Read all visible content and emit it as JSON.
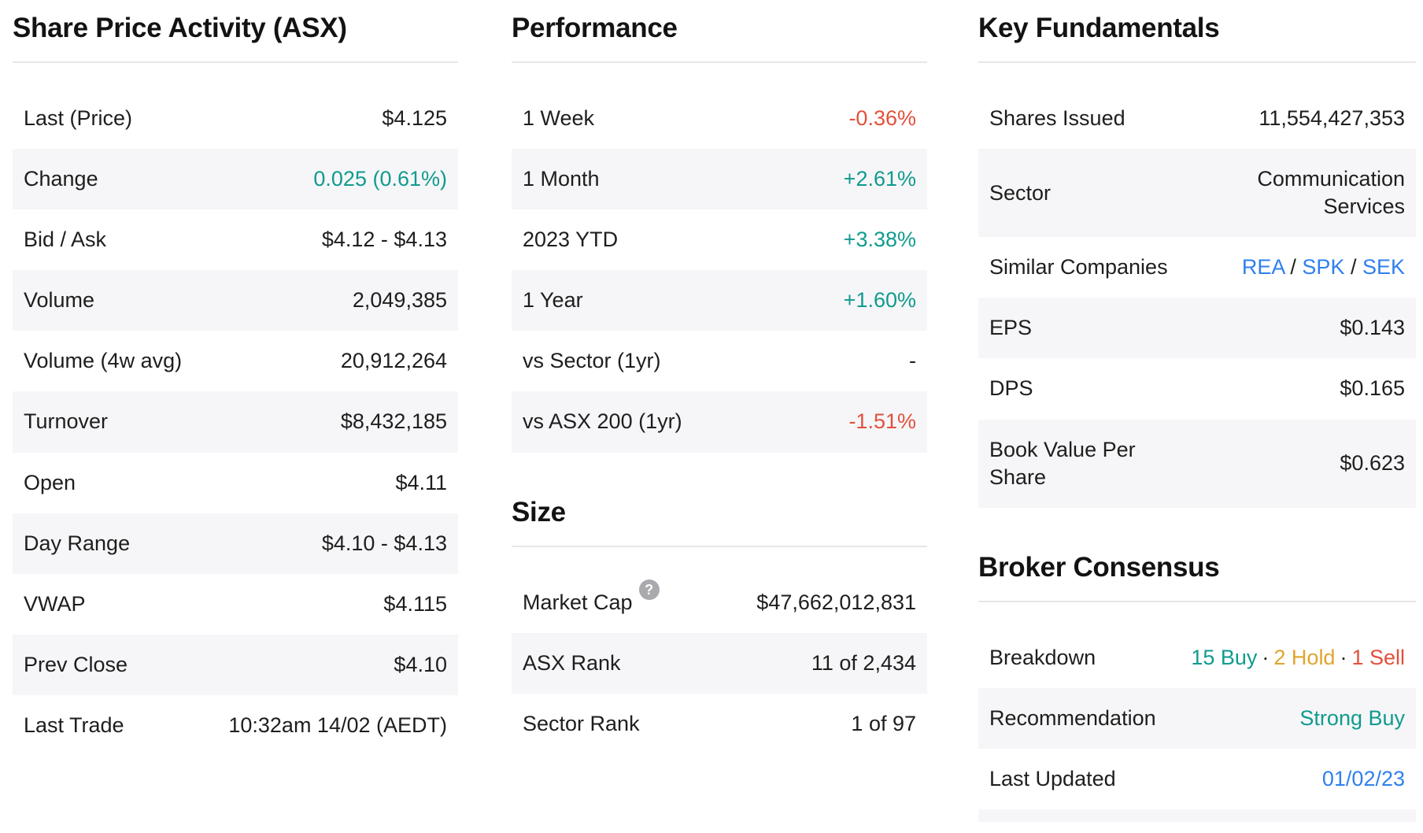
{
  "colors": {
    "positive": "#0F9B8E",
    "negative": "#E2503C",
    "hold": "#E0A52E",
    "link": "#2F80ED",
    "stripe": "#F6F6F8"
  },
  "share_price_activity": {
    "title": "Share Price Activity (ASX)",
    "rows": [
      {
        "label": "Last (Price)",
        "value": "$4.125"
      },
      {
        "label": "Change",
        "value": "0.025 (0.61%)"
      },
      {
        "label": "Bid / Ask",
        "value": "$4.12 - $4.13"
      },
      {
        "label": "Volume",
        "value": "2,049,385"
      },
      {
        "label": "Volume (4w avg)",
        "value": "20,912,264"
      },
      {
        "label": "Turnover",
        "value": "$8,432,185"
      },
      {
        "label": "Open",
        "value": "$4.11"
      },
      {
        "label": "Day Range",
        "value": "$4.10 - $4.13"
      },
      {
        "label": "VWAP",
        "value": "$4.115"
      },
      {
        "label": "Prev Close",
        "value": "$4.10"
      },
      {
        "label": "Last Trade",
        "value": "10:32am 14/02 (AEDT)"
      }
    ]
  },
  "performance": {
    "title": "Performance",
    "rows": [
      {
        "label": "1 Week",
        "value": "-0.36%"
      },
      {
        "label": "1 Month",
        "value": "+2.61%"
      },
      {
        "label": "2023 YTD",
        "value": "+3.38%"
      },
      {
        "label": "1 Year",
        "value": "+1.60%"
      },
      {
        "label": "vs Sector (1yr)",
        "value": "-"
      },
      {
        "label": "vs ASX 200 (1yr)",
        "value": "-1.51%"
      }
    ]
  },
  "size": {
    "title": "Size",
    "help_icon": "?",
    "rows": [
      {
        "label": "Market Cap",
        "value": "$47,662,012,831"
      },
      {
        "label": "ASX Rank",
        "value": "11 of 2,434"
      },
      {
        "label": "Sector Rank",
        "value": "1 of 97"
      }
    ]
  },
  "key_fundamentals": {
    "title": "Key Fundamentals",
    "rows": [
      {
        "label": "Shares Issued",
        "value": "11,554,427,353"
      },
      {
        "label": "Sector",
        "value": "Communication Services"
      },
      {
        "label": "Similar Companies"
      },
      {
        "label": "EPS",
        "value": "$0.143"
      },
      {
        "label": "DPS",
        "value": "$0.165"
      },
      {
        "label": "Book Value Per Share",
        "value": "$0.623"
      }
    ],
    "similar_companies": {
      "links": [
        "REA",
        "SPK",
        "SEK"
      ],
      "separator": " / "
    }
  },
  "broker_consensus": {
    "title": "Broker Consensus",
    "rows": [
      {
        "label": "Breakdown"
      },
      {
        "label": "Recommendation",
        "value": "Strong Buy"
      },
      {
        "label": "Last Updated",
        "value": "01/02/23"
      }
    ],
    "breakdown": {
      "buy": "15 Buy",
      "hold": "2 Hold",
      "sell": "1 Sell",
      "separator": "·"
    }
  }
}
